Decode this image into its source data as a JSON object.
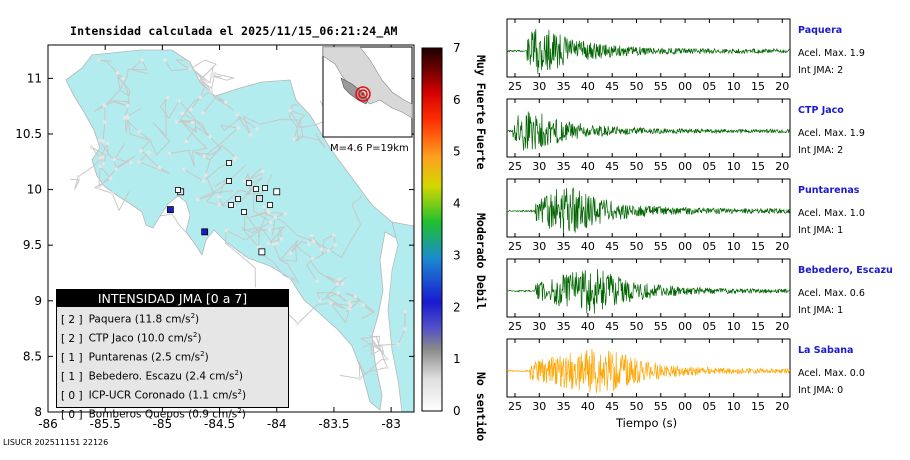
{
  "title": "Intensidad calculada el 2025/11/15_06:21:24_AM",
  "footer": "LISUCR 202511151 22126",
  "map": {
    "x_ticks": [
      "-86",
      "-85.5",
      "-85",
      "-84.5",
      "-84",
      "-83.5",
      "-83"
    ],
    "y_ticks": [
      "11",
      "10.5",
      "10",
      "9.5",
      "9",
      "8.5",
      "8"
    ],
    "inset_label": "M=4.6 P=19km",
    "land_color": "#b2ecee",
    "stations": [
      {
        "name": "Paquera",
        "lon": -84.93,
        "lat": 9.82,
        "level": 2
      },
      {
        "name": "CTP Jaco",
        "lon": -84.63,
        "lat": 9.62,
        "level": 2
      },
      {
        "name": "Puntarenas",
        "lon": -84.84,
        "lat": 9.98,
        "level": 1
      },
      {
        "name": "Bebedero, Escazu",
        "lon": -84.15,
        "lat": 9.92,
        "level": 1
      },
      {
        "name": "ICP-UCR Coronado",
        "lon": -84.0,
        "lat": 9.98,
        "level": 0
      },
      {
        "name": "Bomberos Quepos",
        "lon": -84.13,
        "lat": 9.44,
        "level": 0
      }
    ]
  },
  "legend": {
    "title": "INTENSIDAD JMA [0 a 7]",
    "items": [
      {
        "level": "[ 2 ]",
        "label": "Paquera (11.8 cm/s",
        "sup": "2",
        "close": ")"
      },
      {
        "level": "[ 2 ]",
        "label": "CTP Jaco (10.0 cm/s",
        "sup": "2",
        "close": ")"
      },
      {
        "level": "[ 1 ]",
        "label": "Puntarenas (2.5 cm/s",
        "sup": "2",
        "close": ")"
      },
      {
        "level": "[ 1 ]",
        "label": "Bebedero. Escazu (2.4 cm/s",
        "sup": "2",
        "close": ")"
      },
      {
        "level": "[ 0 ]",
        "label": "ICP-UCR Coronado (1.1 cm/s",
        "sup": "2",
        "close": ")"
      },
      {
        "level": "[ 0 ]",
        "label": "Bomberos Quepos (0.9 cm/s",
        "sup": "2",
        "close": ")"
      }
    ]
  },
  "colorbar": {
    "ticks": [
      "7",
      "6",
      "5",
      "4",
      "3",
      "2",
      "1",
      "0"
    ],
    "labels": [
      "Muy Fuerte",
      "Fuerte",
      "Moderado",
      "Debil",
      "No sentido"
    ]
  },
  "chart_data": {
    "type": "line",
    "xlabel": "Tiempo (s)",
    "x_ticks": [
      "25",
      "30",
      "35",
      "40",
      "45",
      "50",
      "55",
      "00",
      "05",
      "10",
      "15",
      "20"
    ],
    "series": [
      {
        "name": "Paquera",
        "acel": "Acel. Max. 1.9",
        "int": "Int JMA: 2",
        "color": "#006400",
        "onset": 0.07,
        "peak": 0.1,
        "amp": 1.0
      },
      {
        "name": "CTP Jaco",
        "acel": "Acel. Max. 1.9",
        "int": "Int JMA: 2",
        "color": "#006400",
        "onset": 0.02,
        "peak": 0.06,
        "amp": 0.9
      },
      {
        "name": "Puntarenas",
        "acel": "Acel. Max. 1.0",
        "int": "Int JMA: 1",
        "color": "#006400",
        "onset": 0.1,
        "peak": 0.2,
        "amp": 1.0
      },
      {
        "name": "Bebedero, Escazu",
        "acel": "Acel. Max. 0.6",
        "int": "Int JMA: 1",
        "color": "#006400",
        "onset": 0.1,
        "peak": 0.3,
        "amp": 0.9
      },
      {
        "name": "La Sabana",
        "acel": "Acel. Max. 0.0",
        "int": "Int JMA: 0",
        "color": "#ffa500",
        "onset": 0.08,
        "peak": 0.33,
        "amp": 0.95
      }
    ]
  }
}
